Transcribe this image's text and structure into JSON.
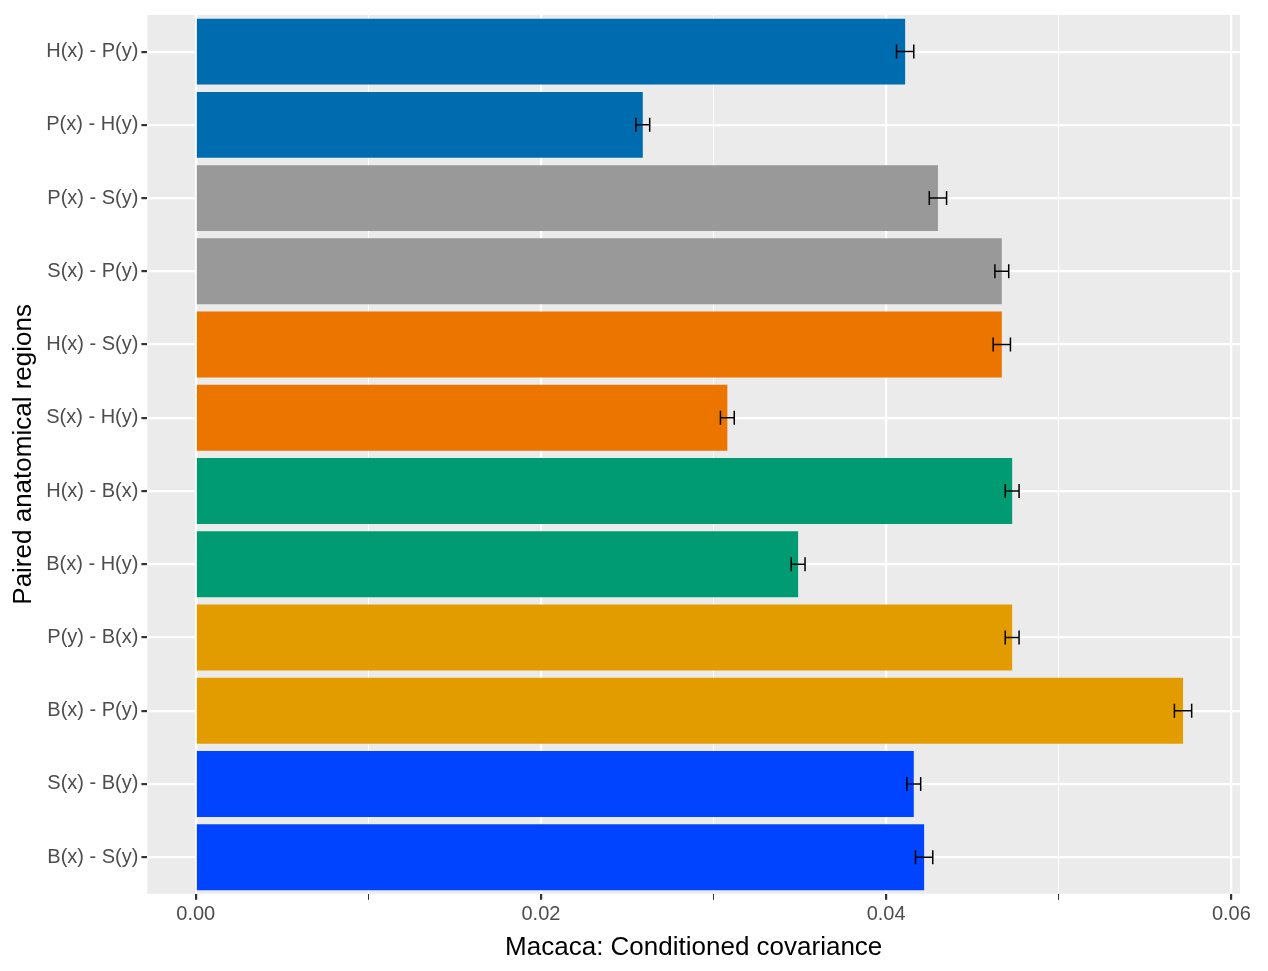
{
  "chart_data": {
    "type": "bar",
    "orientation": "horizontal",
    "xlabel": "Macaca: Conditioned covariance",
    "ylabel": "Paired anatomical regions",
    "categories": [
      "H(x) - P(y)",
      "P(x) - H(y)",
      "P(x) - S(y)",
      "S(x) - P(y)",
      "H(x) - S(y)",
      "S(x) - H(y)",
      "H(x) - B(x)",
      "B(x) - H(y)",
      "P(y) - B(x)",
      "B(x) - P(y)",
      "S(x) - B(y)",
      "B(x) - S(y)"
    ],
    "values": [
      0.0411,
      0.0259,
      0.043,
      0.0467,
      0.0467,
      0.0308,
      0.0473,
      0.0349,
      0.0473,
      0.0572,
      0.0416,
      0.0422
    ],
    "errors": [
      0.0005,
      0.0004,
      0.0005,
      0.0004,
      0.0005,
      0.0004,
      0.0004,
      0.0004,
      0.0004,
      0.0005,
      0.0004,
      0.0005
    ],
    "colors": [
      "#006cb0",
      "#006cb0",
      "#999999",
      "#999999",
      "#ec7500",
      "#ec7500",
      "#009b72",
      "#009b72",
      "#e39c00",
      "#e39c00",
      "#0044ff",
      "#0044ff"
    ],
    "xlim": [
      -0.0028,
      0.0605
    ],
    "xticks": [
      {
        "value": 0,
        "label": "0.00"
      },
      {
        "value": 0.01,
        "label": null
      },
      {
        "value": 0.02,
        "label": "0.02"
      },
      {
        "value": 0.03,
        "label": null
      },
      {
        "value": 0.04,
        "label": "0.04"
      },
      {
        "value": 0.05,
        "label": null
      },
      {
        "value": 0.06,
        "label": "0.06"
      }
    ],
    "grid": true
  }
}
